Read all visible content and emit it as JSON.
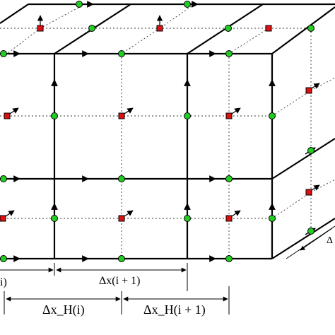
{
  "labels": {
    "dx_left_partial": "i)",
    "dx_i_plus_1": "Δx(i + 1)",
    "dxH_i": "Δx_H(i)",
    "dxH_i_plus_1": "Δx_H(i + 1)",
    "delta_right_partial": "Δ"
  },
  "colors": {
    "line": "#000000",
    "grid_dotted": "#333333",
    "node_green": "#22cc22",
    "node_red": "#dd1111",
    "background": "#ffffff"
  },
  "legend": {
    "green_marker": "green-circle-node",
    "red_marker": "red-square-node"
  }
}
